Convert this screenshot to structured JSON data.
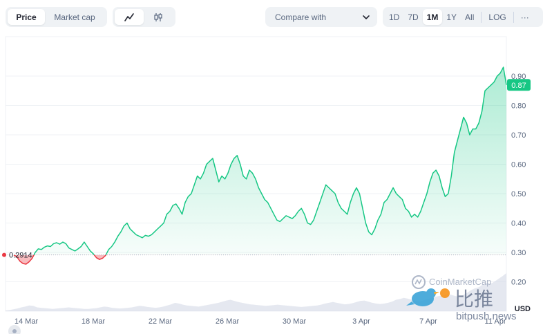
{
  "toolbar": {
    "type_tabs": [
      "Price",
      "Market cap"
    ],
    "compare_label": "Compare with",
    "ranges": [
      "1D",
      "7D",
      "1M",
      "1Y",
      "All"
    ],
    "log_label": "LOG",
    "more_label": "···"
  },
  "watermark": {
    "cmc_text": "CoinMarketCap",
    "cn_text": "比推",
    "site_text": "bitpush.news"
  },
  "chart_data": {
    "type": "line",
    "currency_label": "USD",
    "y_ticks": [
      "0.20",
      "0.30",
      "0.40",
      "0.50",
      "0.60",
      "0.70",
      "0.80",
      "0.90"
    ],
    "x_ticks": [
      "14 Mar",
      "18 Mar",
      "22 Mar",
      "26 Mar",
      "30 Mar",
      "3 Apr",
      "7 Apr",
      "11 Apr"
    ],
    "ylim": [
      0.1,
      1.0
    ],
    "open_price": 0.2914,
    "open_price_label": "0.2914",
    "current_price": 0.87,
    "current_price_label": "0.87",
    "colors": {
      "up": "#16c784",
      "down": "#ea3943",
      "fill_top": "#16c784"
    },
    "series": [
      {
        "values": [
          0.2914,
          0.285,
          0.27,
          0.262,
          0.26,
          0.268,
          0.28,
          0.3,
          0.312,
          0.31,
          0.318,
          0.322,
          0.32,
          0.33,
          0.333,
          0.328,
          0.335,
          0.33,
          0.315,
          0.31,
          0.305,
          0.312,
          0.32,
          0.335,
          0.32,
          0.305,
          0.295,
          0.282,
          0.276,
          0.28,
          0.29,
          0.31,
          0.32,
          0.335,
          0.355,
          0.37,
          0.39,
          0.4,
          0.38,
          0.37,
          0.36,
          0.355,
          0.35,
          0.358,
          0.355,
          0.36,
          0.37,
          0.38,
          0.39,
          0.4,
          0.43,
          0.44,
          0.46,
          0.465,
          0.45,
          0.43,
          0.47,
          0.49,
          0.5,
          0.53,
          0.56,
          0.55,
          0.57,
          0.6,
          0.61,
          0.62,
          0.58,
          0.54,
          0.56,
          0.55,
          0.57,
          0.6,
          0.62,
          0.63,
          0.6,
          0.56,
          0.55,
          0.58,
          0.57,
          0.55,
          0.52,
          0.5,
          0.48,
          0.47,
          0.45,
          0.43,
          0.41,
          0.405,
          0.415,
          0.425,
          0.42,
          0.415,
          0.425,
          0.44,
          0.45,
          0.43,
          0.4,
          0.395,
          0.41,
          0.44,
          0.47,
          0.5,
          0.53,
          0.52,
          0.51,
          0.5,
          0.47,
          0.45,
          0.44,
          0.43,
          0.47,
          0.5,
          0.52,
          0.5,
          0.45,
          0.4,
          0.37,
          0.36,
          0.38,
          0.41,
          0.43,
          0.47,
          0.48,
          0.5,
          0.52,
          0.5,
          0.49,
          0.48,
          0.45,
          0.44,
          0.42,
          0.43,
          0.42,
          0.44,
          0.47,
          0.5,
          0.54,
          0.57,
          0.58,
          0.56,
          0.52,
          0.49,
          0.5,
          0.56,
          0.64,
          0.68,
          0.72,
          0.76,
          0.74,
          0.7,
          0.72,
          0.72,
          0.74,
          0.78,
          0.85,
          0.86,
          0.87,
          0.88,
          0.9,
          0.91,
          0.93,
          0.87
        ]
      }
    ],
    "volume": [
      0.02,
      0.03,
      0.05,
      0.07,
      0.1,
      0.12,
      0.15,
      0.14,
      0.1,
      0.09,
      0.08,
      0.07,
      0.06,
      0.07,
      0.08,
      0.09,
      0.1,
      0.09,
      0.08,
      0.07,
      0.06,
      0.06,
      0.07,
      0.08,
      0.1,
      0.12,
      0.11,
      0.09,
      0.08,
      0.07,
      0.08,
      0.09,
      0.1,
      0.12,
      0.14,
      0.13,
      0.11,
      0.1,
      0.09,
      0.1,
      0.12,
      0.15,
      0.18,
      0.22,
      0.2,
      0.17,
      0.15,
      0.14,
      0.13,
      0.12,
      0.14,
      0.16,
      0.18,
      0.2,
      0.22,
      0.25,
      0.28,
      0.3,
      0.27,
      0.24,
      0.22,
      0.2,
      0.18,
      0.17,
      0.16,
      0.15,
      0.14,
      0.15,
      0.16,
      0.17,
      0.16,
      0.15,
      0.14,
      0.13,
      0.12,
      0.11,
      0.12,
      0.13,
      0.14,
      0.15,
      0.17,
      0.2,
      0.22,
      0.24,
      0.22,
      0.2,
      0.18,
      0.19,
      0.21,
      0.24,
      0.27,
      0.28,
      0.25,
      0.22,
      0.2,
      0.19,
      0.2,
      0.22,
      0.25,
      0.3,
      0.32,
      0.35,
      0.33,
      0.3,
      0.27,
      0.25,
      0.28,
      0.32,
      0.35,
      0.38,
      0.4,
      0.42,
      0.45,
      0.43,
      0.4,
      0.38,
      0.42,
      0.48,
      0.55,
      0.6,
      0.63,
      0.7,
      0.75,
      0.72,
      0.78,
      0.85,
      0.92,
      1.0
    ]
  }
}
